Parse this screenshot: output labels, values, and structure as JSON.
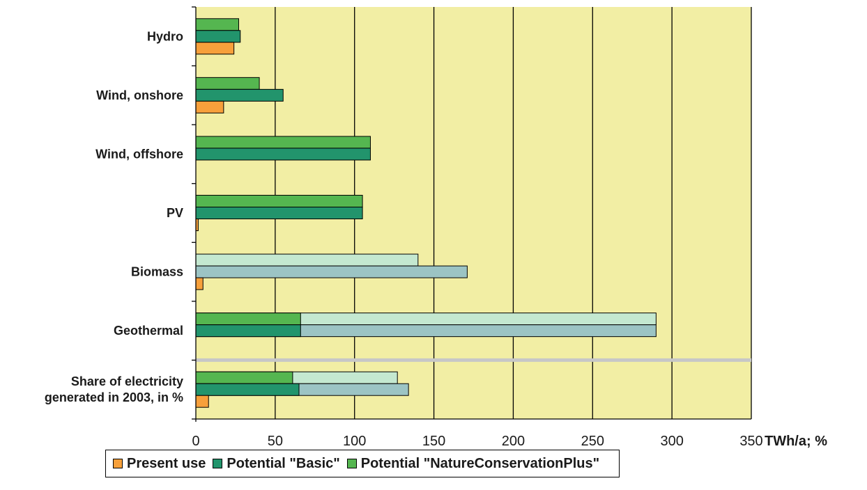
{
  "chart_data": {
    "type": "bar",
    "orientation": "horizontal",
    "x_unit_label": "TWh/a; %",
    "xlim": [
      0,
      350
    ],
    "x_ticks": [
      0,
      50,
      100,
      150,
      200,
      250,
      300,
      350
    ],
    "grid": true,
    "legend_position": "bottom",
    "categories": [
      "Hydro",
      "Wind, onshore",
      "Wind, offshore",
      "PV",
      "Biomass",
      "Geothermal",
      "Share of electricity generated in 2003, in %"
    ],
    "category_label_lines": [
      [
        "Hydro"
      ],
      [
        "Wind, onshore"
      ],
      [
        "Wind, offshore"
      ],
      [
        "PV"
      ],
      [
        "Biomass"
      ],
      [
        "Geothermal"
      ],
      [
        "Share of electricity",
        "generated in 2003, in %"
      ]
    ],
    "series": [
      {
        "name": "Present use",
        "color": "#f7a03b",
        "values": [
          24,
          17.5,
          0,
          1.5,
          4.5,
          0,
          8
        ]
      },
      {
        "name": "Potential \"Basic\"",
        "color": "#22946c",
        "extension_color": "#9cc4c4",
        "values": [
          28,
          55,
          110,
          105,
          0,
          66,
          65
        ],
        "extended_values": [
          null,
          null,
          null,
          null,
          171,
          290,
          134
        ]
      },
      {
        "name": "Potential \"NatureConservationPlus\"",
        "color": "#55b650",
        "extension_color": "#c4e8d0",
        "values": [
          27,
          40,
          110,
          105,
          0,
          66,
          61
        ],
        "extended_values": [
          null,
          null,
          null,
          null,
          140,
          290,
          127
        ]
      }
    ],
    "colors": {
      "plot_background": "#f2eea4",
      "separator": "#c7c7c7",
      "gridline": "#000000"
    }
  },
  "legend": {
    "items": [
      {
        "label": "Present use",
        "color": "#f7a03b"
      },
      {
        "label": "Potential \"Basic\"",
        "color": "#22946c"
      },
      {
        "label": "Potential \"NatureConservationPlus\"",
        "color": "#55b650"
      }
    ]
  }
}
